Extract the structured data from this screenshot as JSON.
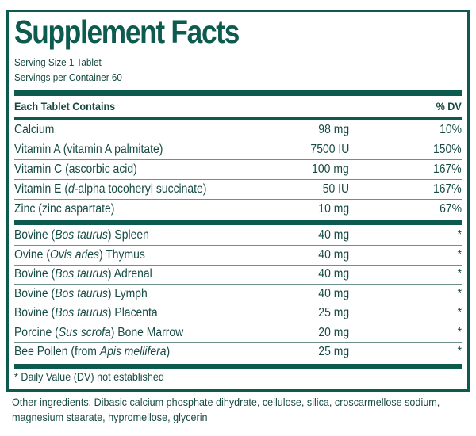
{
  "title": "Supplement Facts",
  "serving_size": "Serving Size 1 Tablet",
  "servings_per_container": "Servings per Container 60",
  "header": {
    "left": "Each Tablet Contains",
    "right": "% DV"
  },
  "nutrients": [
    {
      "pre": "Calcium",
      "it": "",
      "post": "",
      "amount": "98 mg",
      "dv": "10%"
    },
    {
      "pre": "Vitamin A (vitamin A palmitate)",
      "it": "",
      "post": "",
      "amount": "7500 IU",
      "dv": "150%"
    },
    {
      "pre": "Vitamin C (ascorbic acid)",
      "it": "",
      "post": "",
      "amount": "100 mg",
      "dv": "167%"
    },
    {
      "pre": "Vitamin E (",
      "it": "d",
      "post": "-alpha tocoheryl succinate)",
      "amount": "50 IU",
      "dv": "167%"
    },
    {
      "pre": "Zinc (zinc aspartate)",
      "it": "",
      "post": "",
      "amount": "10 mg",
      "dv": "67%"
    }
  ],
  "glandulars": [
    {
      "pre": "Bovine (",
      "it": "Bos taurus",
      "post": ") Spleen",
      "amount": "40 mg",
      "dv": "*"
    },
    {
      "pre": "Ovine (",
      "it": "Ovis aries",
      "post": ") Thymus",
      "amount": "40 mg",
      "dv": "*"
    },
    {
      "pre": "Bovine (",
      "it": "Bos taurus",
      "post": ") Adrenal",
      "amount": "40 mg",
      "dv": "*"
    },
    {
      "pre": "Bovine (",
      "it": "Bos taurus",
      "post": ") Lymph",
      "amount": "40 mg",
      "dv": "*"
    },
    {
      "pre": "Bovine (",
      "it": "Bos taurus",
      "post": ") Placenta",
      "amount": "25 mg",
      "dv": "*"
    },
    {
      "pre": "Porcine (",
      "it": "Sus scrofa",
      "post": ") Bone Marrow",
      "amount": "20 mg",
      "dv": "*"
    },
    {
      "pre": "Bee Pollen (from ",
      "it": "Apis mellifera",
      "post": ")",
      "amount": "25 mg",
      "dv": "*"
    }
  ],
  "footnote": "* Daily Value (DV) not established",
  "other_ingredients": "Other ingredients: Dibasic calcium phosphate dihydrate, cellulose, silica, croscarmellose sodium, magnesium stearate, hypromellose, glycerin",
  "colors": {
    "accent": "#0d5a4f",
    "text": "#174a43"
  }
}
